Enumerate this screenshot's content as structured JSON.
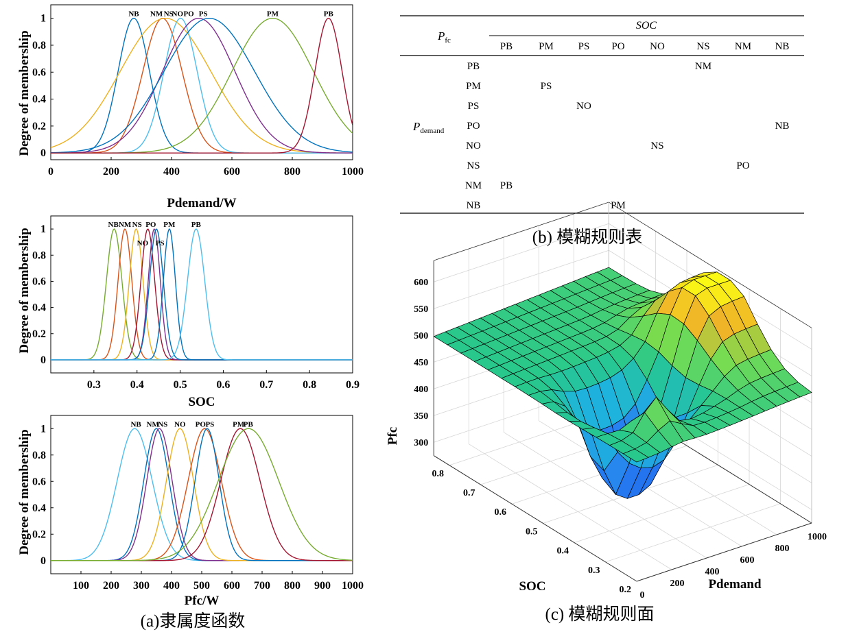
{
  "colors": [
    "#0072BD",
    "#D95319",
    "#EDB120",
    "#7E2F8E",
    "#77AC30",
    "#4DBEEE",
    "#A2142F"
  ],
  "panel_a_caption": "(a)隶属度函数",
  "panel_b_caption": "(b) 模糊规则表",
  "panel_c_caption": "(c) 模糊规则面",
  "chart_data": [
    {
      "id": "pdemand",
      "type": "line",
      "title": "",
      "xlabel": "Pdemand/W",
      "ylabel": "Degree of membership",
      "xlim": [
        0,
        1000
      ],
      "ylim": [
        -0.05,
        1.1
      ],
      "xticks": [
        0,
        200,
        400,
        600,
        800,
        1000
      ],
      "yticks": [
        0,
        0.2,
        0.4,
        0.6,
        0.8,
        1
      ],
      "series": [
        {
          "name": "NB",
          "type": "gauss",
          "center": 275,
          "sigma": 52,
          "color": "#0072BD"
        },
        {
          "name": "NM",
          "type": "gauss",
          "center": 370,
          "sigma": 65,
          "color": "#D95319"
        },
        {
          "name": "NS",
          "type": "gauss",
          "center": 380,
          "sigma": 150,
          "color": "#EDB120"
        },
        {
          "name": "NO",
          "type": "gauss",
          "center": 430,
          "sigma": 55,
          "color": "#4DBEEE"
        },
        {
          "name": "PO",
          "type": "gauss",
          "center": 490,
          "sigma": 120,
          "color": "#7E2F8E"
        },
        {
          "name": "PS",
          "type": "gauss",
          "center": 525,
          "sigma": 150,
          "color": "#0072BD"
        },
        {
          "name": "PM",
          "type": "gauss",
          "center": 735,
          "sigma": 135,
          "color": "#77AC30"
        },
        {
          "name": "PB",
          "type": "gauss",
          "center": 920,
          "sigma": 45,
          "color": "#A2142F"
        }
      ],
      "labels": [
        {
          "text": "NB",
          "x": 275
        },
        {
          "text": "NM",
          "x": 350
        },
        {
          "text": "NS",
          "x": 390
        },
        {
          "text": "NO",
          "x": 420
        },
        {
          "text": "PO",
          "x": 457
        },
        {
          "text": "PS",
          "x": 505
        },
        {
          "text": "PM",
          "x": 735
        },
        {
          "text": "PB",
          "x": 920
        }
      ]
    },
    {
      "id": "soc",
      "type": "line",
      "title": "",
      "xlabel": "SOC",
      "ylabel": "Degree of membership",
      "xlim": [
        0.2,
        0.9
      ],
      "ylim": [
        -0.1,
        1.1
      ],
      "xticks": [
        0.3,
        0.4,
        0.5,
        0.6,
        0.7,
        0.8,
        0.9
      ],
      "yticks": [
        0,
        0.2,
        0.4,
        0.6,
        0.8,
        1
      ],
      "series": [
        {
          "name": "NB",
          "type": "gauss",
          "center": 0.347,
          "sigma": 0.018,
          "color": "#77AC30"
        },
        {
          "name": "NM",
          "type": "gauss",
          "center": 0.372,
          "sigma": 0.016,
          "color": "#D95319"
        },
        {
          "name": "NS",
          "type": "gauss",
          "center": 0.398,
          "sigma": 0.016,
          "color": "#EDB120"
        },
        {
          "name": "NO",
          "type": "gauss",
          "center": 0.425,
          "sigma": 0.016,
          "color": "#A2142F"
        },
        {
          "name": "PO",
          "type": "gauss",
          "center": 0.44,
          "sigma": 0.014,
          "color": "#7E2F8E"
        },
        {
          "name": "PS",
          "type": "gauss",
          "center": 0.445,
          "sigma": 0.016,
          "color": "#0072BD"
        },
        {
          "name": "PM",
          "type": "gauss",
          "center": 0.475,
          "sigma": 0.014,
          "color": "#0072BD"
        },
        {
          "name": "PB",
          "type": "gauss",
          "center": 0.537,
          "sigma": 0.02,
          "color": "#4DBEEE"
        }
      ],
      "labels": [
        {
          "text": "NB",
          "x": 0.345,
          "y": 1.0
        },
        {
          "text": "NM",
          "x": 0.372,
          "y": 1.0
        },
        {
          "text": "NS",
          "x": 0.4,
          "y": 1.0
        },
        {
          "text": "PO",
          "x": 0.432,
          "y": 1.0
        },
        {
          "text": "PM",
          "x": 0.475,
          "y": 1.0
        },
        {
          "text": "PB",
          "x": 0.537,
          "y": 1.0
        },
        {
          "text": "NO",
          "x": 0.413,
          "y": 0.86
        },
        {
          "text": "PS",
          "x": 0.453,
          "y": 0.86
        }
      ]
    },
    {
      "id": "pfc",
      "type": "line",
      "title": "",
      "xlabel": "Pfc/W",
      "ylabel": "Degree of membership",
      "xlim": [
        0,
        1000
      ],
      "ylim": [
        -0.1,
        1.1
      ],
      "xticks": [
        100,
        200,
        300,
        400,
        500,
        600,
        700,
        800,
        900,
        1000
      ],
      "yticks": [
        0,
        0.2,
        0.4,
        0.6,
        0.8,
        1
      ],
      "series": [
        {
          "name": "NB",
          "type": "gauss",
          "center": 278,
          "sigma": 58,
          "color": "#4DBEEE"
        },
        {
          "name": "NM",
          "type": "gauss",
          "center": 350,
          "sigma": 42,
          "color": "#0072BD"
        },
        {
          "name": "NS",
          "type": "gauss",
          "center": 360,
          "sigma": 42,
          "color": "#7E2F8E"
        },
        {
          "name": "NO",
          "type": "gauss",
          "center": 428,
          "sigma": 45,
          "color": "#EDB120"
        },
        {
          "name": "PO",
          "type": "gauss",
          "center": 510,
          "sigma": 55,
          "color": "#D95319"
        },
        {
          "name": "PS",
          "type": "gauss",
          "center": 518,
          "sigma": 40,
          "color": "#0072BD"
        },
        {
          "name": "PM",
          "type": "gauss",
          "center": 628,
          "sigma": 65,
          "color": "#A2142F"
        },
        {
          "name": "PB",
          "type": "gauss",
          "center": 655,
          "sigma": 100,
          "color": "#77AC30"
        }
      ],
      "labels": [
        {
          "text": "NB",
          "x": 282
        },
        {
          "text": "NM",
          "x": 338
        },
        {
          "text": "NS",
          "x": 371
        },
        {
          "text": "NO",
          "x": 428
        },
        {
          "text": "PO",
          "x": 496
        },
        {
          "text": "PS",
          "x": 527
        },
        {
          "text": "PM",
          "x": 622
        },
        {
          "text": "PB",
          "x": 654
        }
      ]
    },
    {
      "id": "rule_table",
      "type": "table",
      "header_left": "P",
      "header_left_sub": "fc",
      "column_group_label": "SOC",
      "columns": [
        "PB",
        "PM",
        "PS",
        "PO",
        "NO",
        "NS",
        "NM",
        "NB"
      ],
      "row_group_label": "P",
      "row_group_sub": "demand",
      "rows": [
        {
          "label": "PB",
          "cells": [
            "",
            "",
            "",
            "",
            "",
            "NM",
            "",
            ""
          ]
        },
        {
          "label": "PM",
          "cells": [
            "",
            "PS",
            "",
            "",
            "",
            "",
            "",
            ""
          ]
        },
        {
          "label": "PS",
          "cells": [
            "",
            "",
            "NO",
            "",
            "",
            "",
            "",
            ""
          ]
        },
        {
          "label": "PO",
          "cells": [
            "",
            "",
            "",
            "",
            "",
            "",
            "",
            "NB"
          ]
        },
        {
          "label": "NO",
          "cells": [
            "",
            "",
            "",
            "",
            "NS",
            "",
            "",
            ""
          ]
        },
        {
          "label": "NS",
          "cells": [
            "",
            "",
            "",
            "",
            "",
            "",
            "PO",
            ""
          ]
        },
        {
          "label": "NM",
          "cells": [
            "PB",
            "",
            "",
            "",
            "",
            "",
            "",
            ""
          ]
        },
        {
          "label": "NB",
          "cells": [
            "",
            "",
            "",
            "PM",
            "",
            "",
            "",
            ""
          ]
        }
      ]
    },
    {
      "id": "surface",
      "type": "surface",
      "xlabel": "Pdemand",
      "ylabel": "SOC",
      "zlabel": "Pfc",
      "xlim": [
        0,
        1000
      ],
      "ylim": [
        0.2,
        0.85
      ],
      "zlim": [
        275,
        640
      ],
      "xticks": [
        0,
        200,
        400,
        600,
        800,
        1000
      ],
      "yticks": [
        0.2,
        0.3,
        0.4,
        0.5,
        0.6,
        0.7,
        0.8
      ],
      "zticks": [
        300,
        350,
        400,
        450,
        500,
        550,
        600
      ]
    }
  ]
}
